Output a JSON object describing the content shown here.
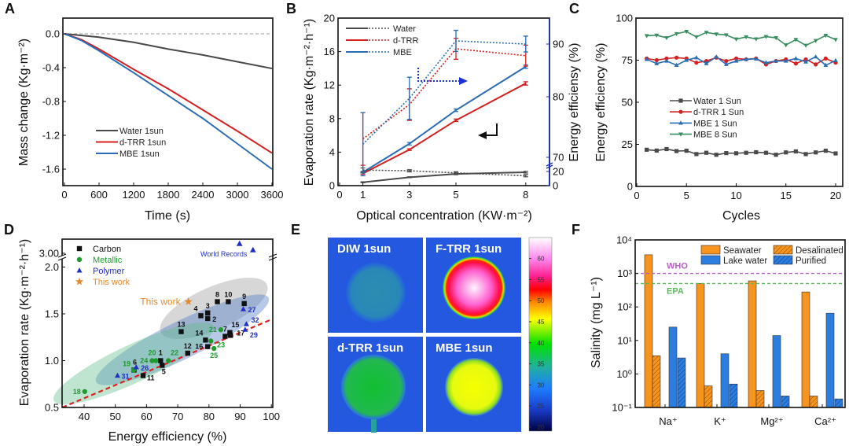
{
  "chart_data": [
    {
      "panel_label": "A",
      "type": "line",
      "xlabel": "Time (s)",
      "ylabel": "Mass change (Kg·m⁻²)",
      "xlim": [
        0,
        3600
      ],
      "ylim": [
        -1.8,
        0.2
      ],
      "xticks": [
        "0",
        "600",
        "1200",
        "1800",
        "2400",
        "3000",
        "3600"
      ],
      "yticks": [
        "0.0",
        "-0.4",
        "-0.8",
        "-1.2",
        "-1.6"
      ],
      "reference_line": {
        "y": 0,
        "style": "dashed",
        "color": "#999999"
      },
      "legend_position": "bottom-left",
      "series": [
        {
          "name": "Water 1sun",
          "color": "#4a4a4a",
          "x": [
            0,
            600,
            1200,
            1800,
            2400,
            3000,
            3600
          ],
          "y": [
            0,
            -0.04,
            -0.1,
            -0.18,
            -0.25,
            -0.33,
            -0.41
          ]
        },
        {
          "name": "d-TRR 1sun",
          "color": "#d42020",
          "x": [
            0,
            300,
            600,
            1200,
            1800,
            2400,
            3000,
            3600
          ],
          "y": [
            0,
            -0.07,
            -0.18,
            -0.42,
            -0.65,
            -0.9,
            -1.15,
            -1.41
          ]
        },
        {
          "name": "MBE 1sun",
          "color": "#2a6db5",
          "x": [
            0,
            300,
            600,
            1200,
            1800,
            2400,
            3000,
            3600
          ],
          "y": [
            0,
            -0.08,
            -0.2,
            -0.46,
            -0.73,
            -1.0,
            -1.3,
            -1.6
          ]
        }
      ]
    },
    {
      "panel_label": "B",
      "type": "line",
      "xlabel": "Optical concentration (KW·m⁻²)",
      "ylabel": "Evaporation rate (Kg·m⁻²·h⁻¹)",
      "ylabel_right": "Energy efficiensy (%)",
      "right_axis_color": "#1a2fb0",
      "right_axis_break": [
        20,
        70
      ],
      "xlim": [
        0,
        9
      ],
      "ylim": [
        0,
        20
      ],
      "xticks": [
        "0",
        "1",
        "3",
        "5",
        "8"
      ],
      "yticks": [
        "0",
        "4",
        "8",
        "12",
        "16",
        "20"
      ],
      "yticks_right": [
        "0",
        "20",
        "70",
        "80",
        "90"
      ],
      "legend_position": "top-left",
      "legend": [
        "Water",
        "d-TRR",
        "MBE"
      ],
      "series": [
        {
          "name": "Water",
          "axis": "left",
          "style": "solid",
          "color": "#4a4a4a",
          "x": [
            1,
            3,
            5,
            8
          ],
          "y": [
            0.4,
            1.0,
            1.4,
            1.6
          ],
          "err": [
            0.05,
            0.05,
            0.1,
            0.1
          ]
        },
        {
          "name": "d-TRR",
          "axis": "left",
          "style": "solid",
          "color": "#d42020",
          "x": [
            1,
            3,
            5,
            8
          ],
          "y": [
            1.45,
            4.3,
            7.8,
            12.2
          ],
          "err": [
            0.1,
            0.1,
            0.15,
            0.2
          ]
        },
        {
          "name": "MBE",
          "axis": "left",
          "style": "solid",
          "color": "#2a6db5",
          "x": [
            1,
            3,
            5,
            8
          ],
          "y": [
            1.6,
            5.0,
            9.0,
            14.2
          ],
          "err": [
            0.1,
            0.15,
            0.15,
            0.2
          ]
        },
        {
          "name": "Water",
          "axis": "right",
          "style": "dotted",
          "color": "#4a4a4a",
          "x": [
            1,
            3,
            5,
            8
          ],
          "y": [
            22,
            21,
            18,
            14
          ],
          "err": [
            3,
            1.5,
            1.5,
            1.5
          ]
        },
        {
          "name": "d-TRR",
          "axis": "right",
          "style": "dotted",
          "color": "#d42020",
          "x": [
            1,
            3,
            5,
            8
          ],
          "y": [
            72,
            78.5,
            89.1,
            87.8
          ],
          "err": [
            5,
            3,
            2,
            2
          ]
        },
        {
          "name": "MBE",
          "axis": "right",
          "style": "dotted",
          "color": "#2a6db5",
          "x": [
            1,
            3,
            5,
            8
          ],
          "y": [
            71,
            79.7,
            90.6,
            90
          ],
          "err": [
            6,
            4,
            2,
            1.5
          ]
        }
      ]
    },
    {
      "panel_label": "C",
      "type": "line",
      "xlabel": "Cycles",
      "ylabel": "Energy efficiency (%)",
      "xlim": [
        0,
        20.7
      ],
      "ylim": [
        0,
        100
      ],
      "xticks": [
        "0",
        "5",
        "10",
        "15",
        "20"
      ],
      "yticks": [
        "0",
        "25",
        "50",
        "75",
        "100"
      ],
      "legend_position": "center-left",
      "x": [
        1,
        2,
        3,
        4,
        5,
        6,
        7,
        8,
        9,
        10,
        11,
        12,
        13,
        14,
        15,
        16,
        17,
        18,
        19,
        20
      ],
      "series": [
        {
          "name": "Water 1 Sun",
          "marker": "square",
          "color": "#4a4a4a",
          "y": [
            21.8,
            21.3,
            22.2,
            21,
            21.2,
            19.2,
            20,
            18.8,
            19.8,
            19.7,
            20,
            20.3,
            20,
            18.8,
            20.2,
            20.8,
            19.2,
            20.2,
            21.2,
            19.6
          ]
        },
        {
          "name": "d-TRR 1 Sun",
          "marker": "circle",
          "color": "#d42020",
          "y": [
            76,
            75,
            76,
            76.5,
            76,
            73.5,
            74.5,
            76.5,
            74.5,
            76,
            75.5,
            76,
            72.5,
            74.5,
            75.5,
            73,
            75.5,
            72.5,
            76,
            73.5
          ]
        },
        {
          "name": "MBE 1 Sun",
          "marker": "triangle-up",
          "color": "#2a6db5",
          "y": [
            75.5,
            73,
            74.5,
            72,
            75,
            76.5,
            73,
            77,
            72.5,
            74.5,
            75.5,
            75.8,
            73.5,
            74.5,
            74.5,
            76,
            74,
            77,
            72,
            74.8
          ]
        },
        {
          "name": "MBE 8 Sun",
          "marker": "triangle-down",
          "color": "#3a8f62",
          "y": [
            89.5,
            89.8,
            88.3,
            90.7,
            92,
            88.8,
            91.5,
            90.5,
            90,
            87.5,
            88.8,
            87.6,
            89,
            88.3,
            84,
            87.2,
            83.8,
            86.6,
            89.7,
            87.2
          ]
        }
      ]
    },
    {
      "panel_label": "D",
      "type": "scatter",
      "xlabel": "Energy efficiency (%)",
      "ylabel": "Evaporation rate (Kg·m⁻²·h⁻¹)",
      "xlim": [
        33,
        100
      ],
      "ylim": [
        0.5,
        2.0
      ],
      "y_axis_break": [
        2.0,
        3.0
      ],
      "xticks": [
        "40",
        "50",
        "60",
        "70",
        "80",
        "90",
        "100"
      ],
      "yticks": [
        "0.5",
        "1.0",
        "1.5",
        "2.0",
        "3.00"
      ],
      "legend_position": "top-left",
      "trend_line": {
        "x": [
          33,
          100
        ],
        "y": [
          0.5,
          1.44
        ],
        "style": "dashed",
        "color": "#e02020"
      },
      "series": [
        {
          "name": "Carbon",
          "marker": "square",
          "color": "#111111",
          "points": [
            {
              "x": 64.5,
              "y": 1.0,
              "label": "1"
            },
            {
              "x": 79.6,
              "y": 1.45,
              "label": "2"
            },
            {
              "x": 79.6,
              "y": 1.51,
              "label": "3"
            },
            {
              "x": 77.4,
              "y": 1.48,
              "label": "4"
            },
            {
              "x": 65,
              "y": 0.95,
              "label": "5"
            },
            {
              "x": 56,
              "y": 0.9,
              "label": "6"
            },
            {
              "x": 85.2,
              "y": 1.26,
              "label": "7"
            },
            {
              "x": 82.7,
              "y": 1.63,
              "label": "8"
            },
            {
              "x": 91.3,
              "y": 1.61,
              "label": "9"
            },
            {
              "x": 86.2,
              "y": 1.63,
              "label": "10"
            },
            {
              "x": 58.9,
              "y": 0.84,
              "label": "11"
            },
            {
              "x": 73.2,
              "y": 1.08,
              "label": "12"
            },
            {
              "x": 71.1,
              "y": 1.31,
              "label": "13"
            },
            {
              "x": 78.9,
              "y": 1.22,
              "label": "14"
            },
            {
              "x": 86.7,
              "y": 1.3,
              "label": "15"
            },
            {
              "x": 79.6,
              "y": 1.15,
              "label": "16"
            },
            {
              "x": 86.9,
              "y": 1.27,
              "label": "17"
            }
          ]
        },
        {
          "name": "Metallic",
          "marker": "circle",
          "color": "#1f9a2f",
          "points": [
            {
              "x": 40.2,
              "y": 0.67,
              "label": "18"
            },
            {
              "x": 55.9,
              "y": 0.9,
              "label": "19"
            },
            {
              "x": 61.8,
              "y": 1.0,
              "label": "20"
            },
            {
              "x": 83.8,
              "y": 1.33,
              "label": "21"
            },
            {
              "x": 67,
              "y": 1.0,
              "label": "22"
            },
            {
              "x": 80.6,
              "y": 1.21,
              "label": "23"
            },
            {
              "x": 63,
              "y": 1.0,
              "label": "24"
            },
            {
              "x": 81.6,
              "y": 1.13,
              "label": "25"
            }
          ]
        },
        {
          "name": "Polymer",
          "marker": "triangle-up",
          "color": "#1f2fc8",
          "points": [
            {
              "x": 56.7,
              "y": 0.93,
              "label": "26"
            },
            {
              "x": 91,
              "y": 1.55,
              "label": "27"
            },
            {
              "x": 91.6,
              "y": 1.33,
              "label": "29"
            },
            {
              "x": 50.7,
              "y": 0.84,
              "label": "31"
            },
            {
              "x": 92,
              "y": 1.39,
              "label": "32"
            }
          ]
        },
        {
          "name": "This work",
          "marker": "star",
          "color": "#e8892a",
          "points": [
            {
              "x": 73.4,
              "y": 1.63,
              "label": "This work"
            }
          ]
        }
      ],
      "world_records": {
        "label": "World Records",
        "marker": "triangle-up",
        "color": "#1f2fc8",
        "points": [
          {
            "x": 89.8,
            "y": 3.15
          },
          {
            "x": 94.1,
            "y": 3.05
          }
        ]
      },
      "regions": [
        {
          "color": "#9a9a9a"
        },
        {
          "color": "#4a78c8"
        },
        {
          "color": "#5fbf8a"
        }
      ]
    },
    {
      "panel_label": "E",
      "type": "heatmap",
      "images": [
        {
          "label": "DIW 1sun",
          "peak_color": "#2b8fb8"
        },
        {
          "label": "F-TRR 1sun",
          "peak_color": "#ffe8ff"
        },
        {
          "label": "d-TRR 1sun",
          "peak_color": "#1fbf3a"
        },
        {
          "label": "MBE 1sun",
          "peak_color": "#f0ff00"
        }
      ],
      "colorbar": {
        "range": [
          19,
          65
        ],
        "ticks": [
          "20",
          "25",
          "30",
          "35",
          "40",
          "45",
          "50",
          "55",
          "60"
        ]
      }
    },
    {
      "panel_label": "F",
      "type": "bar",
      "ylabel": "Salinity (mg L⁻¹)",
      "yscale": "log",
      "ylim": [
        0.1,
        10000
      ],
      "yticks": [
        "10⁴",
        "10³",
        "10²",
        "10¹",
        "10⁰",
        "10⁻¹"
      ],
      "categories": [
        "Na⁺",
        "K⁺",
        "Mg²⁺",
        "Ca²⁺"
      ],
      "legend_position": "top-right",
      "series": [
        {
          "name": "Seawater",
          "color": "#f7941d",
          "hatched": false,
          "values": [
            3600,
            500,
            600,
            280
          ]
        },
        {
          "name": "Desalinated",
          "color": "#f7941d",
          "hatched": true,
          "values": [
            3.5,
            0.44,
            0.32,
            0.22
          ]
        },
        {
          "name": "Lake water",
          "color": "#2b7de0",
          "hatched": false,
          "values": [
            25,
            4.0,
            14,
            65
          ]
        },
        {
          "name": "Purified",
          "color": "#2b7de0",
          "hatched": true,
          "values": [
            3.0,
            0.5,
            0.22,
            0.18
          ]
        }
      ],
      "reference_lines": [
        {
          "label": "WHO",
          "y": 1000,
          "color": "#b55fc6",
          "style": "dashed"
        },
        {
          "label": "EPA",
          "y": 500,
          "color": "#5cb85c",
          "style": "dashed"
        }
      ]
    }
  ]
}
